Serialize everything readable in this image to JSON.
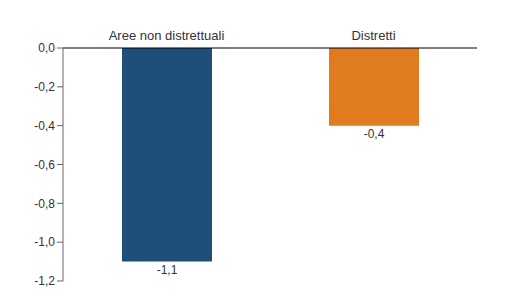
{
  "chart_data": {
    "type": "bar",
    "categories": [
      "Aree non distrettuali",
      "Distretti"
    ],
    "values": [
      -1.1,
      -0.4
    ],
    "value_labels": [
      "-1,1",
      "-0,4"
    ],
    "data_labels": true,
    "colors": [
      "#1F4E79",
      "#E07B20"
    ],
    "ylim": [
      -1.2,
      0.0
    ],
    "yticks": [
      {
        "value": 0.0,
        "label": "0,0"
      },
      {
        "value": -0.2,
        "label": "-0,2"
      },
      {
        "value": -0.4,
        "label": "-0,4"
      },
      {
        "value": -0.6,
        "label": "-0,6"
      },
      {
        "value": -0.8,
        "label": "-0,8"
      },
      {
        "value": -1.0,
        "label": "-1,0"
      },
      {
        "value": -1.2,
        "label": "-1,2"
      }
    ]
  }
}
